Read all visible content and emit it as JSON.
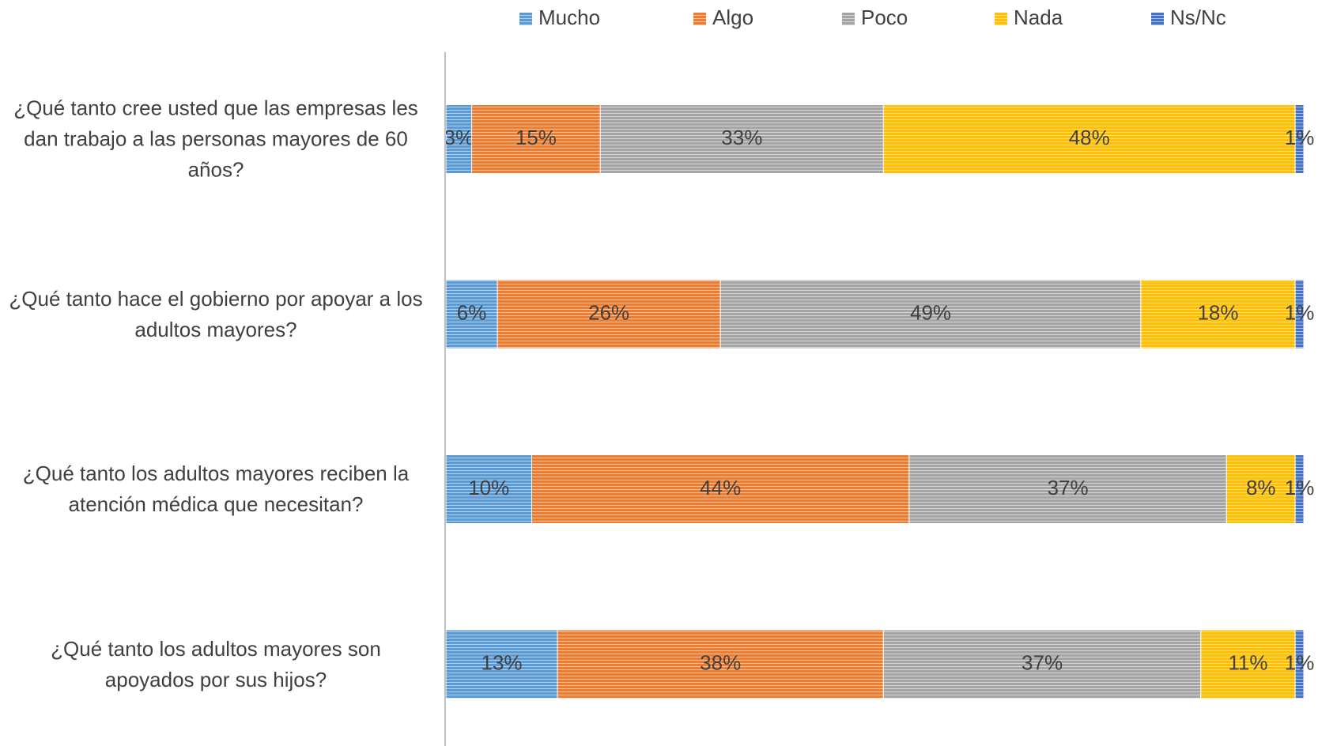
{
  "chart_data": {
    "type": "stacked_barh",
    "categories": [
      "¿Qué tanto cree usted que las empresas les dan trabajo a las personas mayores de 60 años?",
      "¿Qué tanto hace el gobierno por apoyar a los adultos mayores?",
      "¿Qué tanto los adultos mayores reciben la atención médica que necesitan?",
      "¿Qué tanto los adultos mayores son apoyados por sus hijos?"
    ],
    "xlim": [
      0,
      100
    ],
    "legend": "top",
    "series": [
      {
        "name": "Mucho",
        "color": "#5b9bd5",
        "values": [
          3,
          6,
          10,
          13
        ],
        "value_labels": [
          "3%",
          "6%",
          "10%",
          "13%"
        ]
      },
      {
        "name": "Algo",
        "color": "#ed7d31",
        "values": [
          15,
          26,
          44,
          38
        ],
        "value_labels": [
          "15%",
          "26%",
          "44%",
          "38%"
        ]
      },
      {
        "name": "Poco",
        "color": "#a5a5a5",
        "values": [
          33,
          49,
          37,
          37
        ],
        "value_labels": [
          "33%",
          "49%",
          "37%",
          "37%"
        ]
      },
      {
        "name": "Nada",
        "color": "#ffc000",
        "values": [
          48,
          18,
          8,
          11
        ],
        "value_labels": [
          "48%",
          "18%",
          "8%",
          "11%"
        ]
      },
      {
        "name": "Ns/Nc",
        "color": "#4472c4",
        "values": [
          1,
          1,
          1,
          1
        ],
        "value_labels": [
          "1%",
          "1%",
          "1%",
          "1%"
        ]
      }
    ]
  }
}
